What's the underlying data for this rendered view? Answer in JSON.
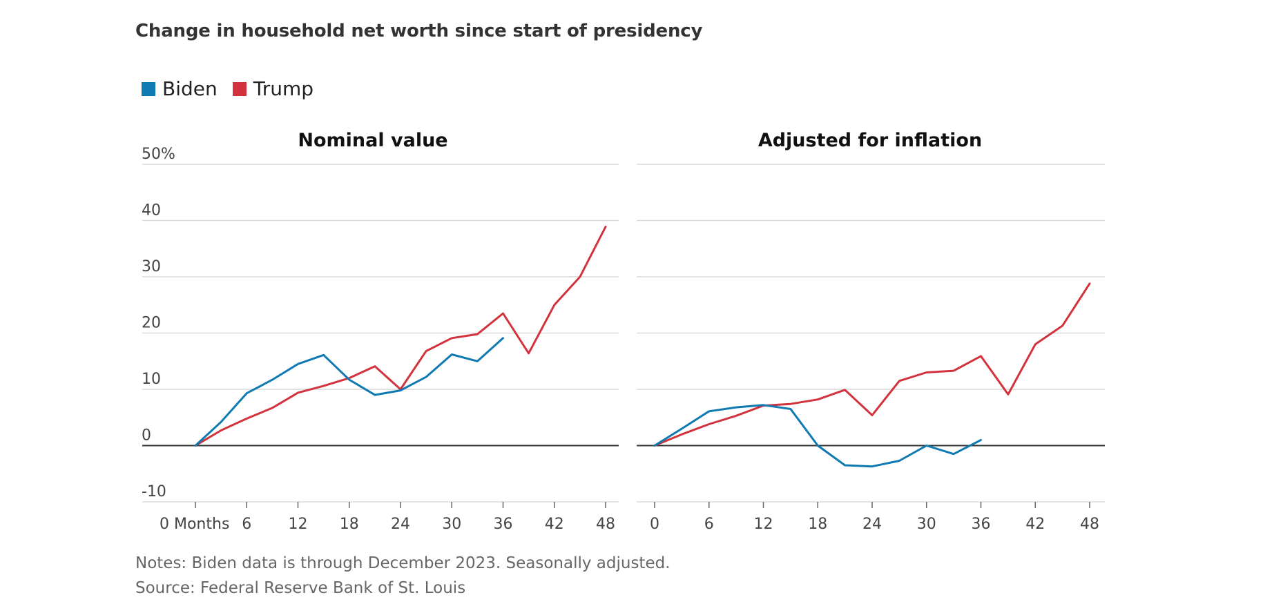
{
  "title": "Change in household net worth since start of presidency",
  "legend": [
    {
      "name": "Biden",
      "color": "#0f7ab2"
    },
    {
      "name": "Trump",
      "color": "#d2323c"
    }
  ],
  "notes": "Notes: Biden data is through December 2023. Seasonally adjusted.",
  "source": "Source: Federal Reserve Bank of St. Louis",
  "chart_data": [
    {
      "type": "line",
      "title": "Nominal value",
      "xlabel": "",
      "ylabel": "",
      "xlim": [
        0,
        48
      ],
      "ylim": [
        -10,
        50
      ],
      "x_ticks": [
        0,
        6,
        12,
        18,
        24,
        30,
        36,
        42,
        48
      ],
      "x_tick_labels": [
        "0 Months",
        "6",
        "12",
        "18",
        "24",
        "30",
        "36",
        "42",
        "48"
      ],
      "y_ticks": [
        -10,
        0,
        10,
        20,
        30,
        40,
        50
      ],
      "y_tick_labels": [
        "-10",
        "0",
        "10",
        "20",
        "30",
        "40",
        "50%"
      ],
      "grid": true,
      "series": [
        {
          "name": "Biden",
          "color": "#0f7ab2",
          "x": [
            0,
            3,
            6,
            9,
            12,
            15,
            18,
            21,
            24,
            27,
            30,
            33,
            36
          ],
          "y": [
            0,
            4.2,
            9.3,
            11.7,
            14.5,
            16.1,
            11.7,
            9.0,
            9.8,
            12.2,
            16.2,
            15.0,
            19.1
          ]
        },
        {
          "name": "Trump",
          "color": "#d2323c",
          "x": [
            0,
            3,
            6,
            9,
            12,
            15,
            18,
            21,
            24,
            27,
            30,
            33,
            36,
            39,
            42,
            45,
            48
          ],
          "y": [
            0,
            2.7,
            4.8,
            6.7,
            9.4,
            10.6,
            12.0,
            14.1,
            10.0,
            16.8,
            19.1,
            19.8,
            23.5,
            16.4,
            25.0,
            30.0,
            38.9
          ]
        }
      ]
    },
    {
      "type": "line",
      "title": "Adjusted for inflation",
      "xlabel": "",
      "ylabel": "",
      "xlim": [
        0,
        48
      ],
      "ylim": [
        -10,
        50
      ],
      "x_ticks": [
        0,
        6,
        12,
        18,
        24,
        30,
        36,
        42,
        48
      ],
      "x_tick_labels": [
        "0",
        "6",
        "12",
        "18",
        "24",
        "30",
        "36",
        "42",
        "48"
      ],
      "y_ticks": [
        -10,
        0,
        10,
        20,
        30,
        40,
        50
      ],
      "grid": true,
      "series": [
        {
          "name": "Biden",
          "color": "#0f7ab2",
          "x": [
            0,
            3,
            6,
            9,
            12,
            15,
            18,
            21,
            24,
            27,
            30,
            33,
            36
          ],
          "y": [
            0,
            3.0,
            6.1,
            6.8,
            7.2,
            6.5,
            0,
            -3.5,
            -3.7,
            -2.7,
            0,
            -1.5,
            1.0
          ]
        },
        {
          "name": "Trump",
          "color": "#d2323c",
          "x": [
            0,
            3,
            6,
            9,
            12,
            15,
            18,
            21,
            24,
            27,
            30,
            33,
            36,
            39,
            42,
            45,
            48
          ],
          "y": [
            0,
            2.0,
            3.8,
            5.3,
            7.1,
            7.4,
            8.2,
            9.9,
            5.4,
            11.5,
            13.0,
            13.3,
            15.9,
            9.1,
            18.0,
            21.3,
            28.8
          ]
        }
      ]
    }
  ]
}
